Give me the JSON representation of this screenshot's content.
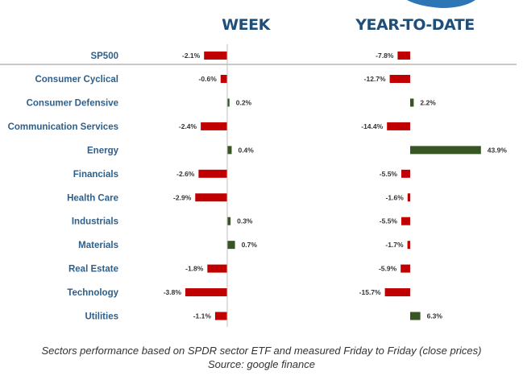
{
  "chart_data": {
    "type": "bar",
    "orientation": "horizontal",
    "categories": [
      "SP500",
      "Consumer Cyclical",
      "Consumer Defensive",
      "Communication Services",
      "Energy",
      "Financials",
      "Health Care",
      "Industrials",
      "Materials",
      "Real Estate",
      "Technology",
      "Utilities"
    ],
    "series": [
      {
        "name": "WEEK",
        "values": [
          -2.1,
          -0.6,
          0.2,
          -2.4,
          0.4,
          -2.6,
          -2.9,
          0.3,
          0.7,
          -1.8,
          -3.8,
          -1.1
        ],
        "labels": [
          "-2.1%",
          "-0.6%",
          "0.2%",
          "-2.4%",
          "0.4%",
          "-2.6%",
          "-2.9%",
          "0.3%",
          "0.7%",
          "-1.8%",
          "-3.8%",
          "-1.1%"
        ]
      },
      {
        "name": "YEAR-TO-DATE",
        "values": [
          -7.8,
          -12.7,
          2.2,
          -14.4,
          43.9,
          -5.5,
          -1.6,
          -5.5,
          -1.7,
          -5.9,
          -15.7,
          6.3
        ],
        "labels": [
          "-7.8%",
          "-12.7%",
          "2.2%",
          "-14.4%",
          "43.9%",
          "-5.5%",
          "-1.6%",
          "-5.5%",
          "-1.7%",
          "-5.9%",
          "-15.7%",
          "6.3%"
        ]
      }
    ],
    "colors": {
      "positive": "#375623",
      "negative": "#c00000"
    },
    "grid": false,
    "legend": "none"
  },
  "caption": {
    "line1": "Sectors performance based on SPDR sector ETF and measured Friday to Friday (close prices)",
    "line2": "Source: google finance"
  }
}
